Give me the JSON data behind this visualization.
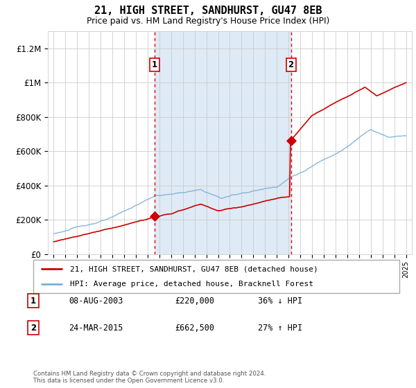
{
  "title": "21, HIGH STREET, SANDHURST, GU47 8EB",
  "subtitle": "Price paid vs. HM Land Registry's House Price Index (HPI)",
  "legend_line1": "21, HIGH STREET, SANDHURST, GU47 8EB (detached house)",
  "legend_line2": "HPI: Average price, detached house, Bracknell Forest",
  "footnote": "Contains HM Land Registry data © Crown copyright and database right 2024.\nThis data is licensed under the Open Government Licence v3.0.",
  "transaction1_label": "1",
  "transaction1_date": "08-AUG-2003",
  "transaction1_price": "£220,000",
  "transaction1_hpi": "36% ↓ HPI",
  "transaction2_label": "2",
  "transaction2_date": "24-MAR-2015",
  "transaction2_price": "£662,500",
  "transaction2_hpi": "27% ↑ HPI",
  "transaction1_x": 2003.6,
  "transaction1_y": 220000,
  "transaction2_x": 2015.2,
  "transaction2_y": 662500,
  "hpi_color": "#7bafd4",
  "price_color": "#cc0000",
  "shading_color": "#deeaf5",
  "background_color": "#ffffff",
  "ylim": [
    0,
    1300000
  ],
  "xlim_start": 1994.5,
  "xlim_end": 2025.5,
  "yticks": [
    0,
    200000,
    400000,
    600000,
    800000,
    1000000,
    1200000
  ],
  "ytick_labels": [
    "£0",
    "£200K",
    "£400K",
    "£600K",
    "£800K",
    "£1M",
    "£1.2M"
  ]
}
